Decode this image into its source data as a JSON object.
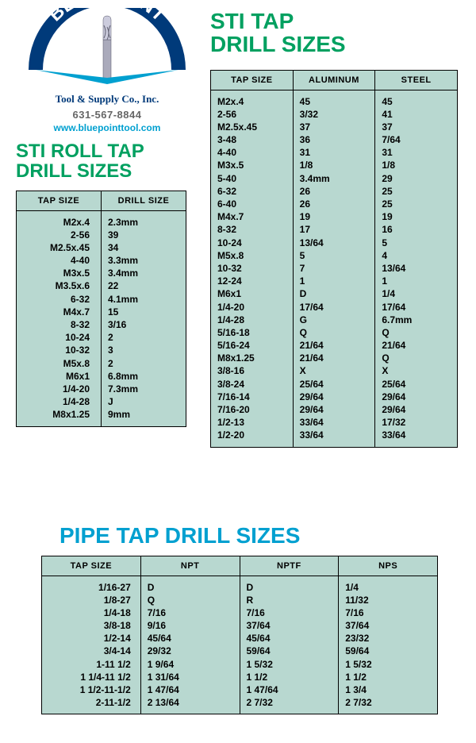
{
  "logo": {
    "company_top": "BLUE POINT",
    "company_sub": "Tool & Supply Co., Inc.",
    "phone": "631-567-8844",
    "url": "www.bluepointtool.com",
    "arc_color": "#003a7a",
    "accent_color": "#00a0d0"
  },
  "titles": {
    "roll": "STI ROLL TAP\nDRILL SIZES",
    "sti": "STI TAP\nDRILL SIZES",
    "pipe": "PIPE TAP DRILL SIZES",
    "green": "#00a060",
    "blue": "#00a0d0"
  },
  "rollTable": {
    "bg": "#b8d8d0",
    "columns": [
      "TAP SIZE",
      "DRILL SIZE"
    ],
    "rows": [
      [
        "M2x.4",
        "2.3mm"
      ],
      [
        "2-56",
        "39"
      ],
      [
        "M2.5x.45",
        "34"
      ],
      [
        "4-40",
        "3.3mm"
      ],
      [
        "M3x.5",
        "3.4mm"
      ],
      [
        "M3.5x.6",
        "22"
      ],
      [
        "6-32",
        "4.1mm"
      ],
      [
        "M4x.7",
        "15"
      ],
      [
        "8-32",
        "3/16"
      ],
      [
        "10-24",
        "2"
      ],
      [
        "10-32",
        "3"
      ],
      [
        "M5x.8",
        "2"
      ],
      [
        "M6x1",
        "6.8mm"
      ],
      [
        "1/4-20",
        "7.3mm"
      ],
      [
        "1/4-28",
        "J"
      ],
      [
        "M8x1.25",
        "9mm"
      ]
    ]
  },
  "stiTable": {
    "bg": "#b8d8d0",
    "columns": [
      "TAP SIZE",
      "ALUMINUM",
      "STEEL"
    ],
    "rows": [
      [
        "M2x.4",
        "45",
        "45"
      ],
      [
        "2-56",
        "3/32",
        "41"
      ],
      [
        "M2.5x.45",
        "37",
        "37"
      ],
      [
        "3-48",
        "36",
        "7/64"
      ],
      [
        "4-40",
        "31",
        "31"
      ],
      [
        "M3x.5",
        "1/8",
        "1/8"
      ],
      [
        "5-40",
        "3.4mm",
        "29"
      ],
      [
        "6-32",
        "26",
        "25"
      ],
      [
        "6-40",
        "26",
        "25"
      ],
      [
        "M4x.7",
        "19",
        "19"
      ],
      [
        "8-32",
        "17",
        "16"
      ],
      [
        "10-24",
        "13/64",
        "5"
      ],
      [
        "M5x.8",
        "5",
        "4"
      ],
      [
        "10-32",
        "7",
        "13/64"
      ],
      [
        "12-24",
        "1",
        "1"
      ],
      [
        "M6x1",
        "D",
        "1/4"
      ],
      [
        "1/4-20",
        "17/64",
        "17/64"
      ],
      [
        "1/4-28",
        "G",
        "6.7mm"
      ],
      [
        "5/16-18",
        "Q",
        "Q"
      ],
      [
        "5/16-24",
        "21/64",
        "21/64"
      ],
      [
        "M8x1.25",
        "21/64",
        "Q"
      ],
      [
        "3/8-16",
        "X",
        "X"
      ],
      [
        "3/8-24",
        "25/64",
        "25/64"
      ],
      [
        "7/16-14",
        "29/64",
        "29/64"
      ],
      [
        "7/16-20",
        "29/64",
        "29/64"
      ],
      [
        "1/2-13",
        "33/64",
        "17/32"
      ],
      [
        "1/2-20",
        "33/64",
        "33/64"
      ]
    ]
  },
  "pipeTable": {
    "bg": "#b8d8d0",
    "columns": [
      "TAP SIZE",
      "NPT",
      "NPTF",
      "NPS"
    ],
    "rows": [
      [
        "1/16-27",
        "D",
        "D",
        "1/4"
      ],
      [
        "1/8-27",
        "Q",
        "R",
        "11/32"
      ],
      [
        "1/4-18",
        "7/16",
        "7/16",
        "7/16"
      ],
      [
        "3/8-18",
        "9/16",
        "37/64",
        "37/64"
      ],
      [
        "1/2-14",
        "45/64",
        "45/64",
        "23/32"
      ],
      [
        "3/4-14",
        "29/32",
        "59/64",
        "59/64"
      ],
      [
        "1-11 1/2",
        "1 9/64",
        "1 5/32",
        "1 5/32"
      ],
      [
        "1 1/4-11 1/2",
        "1 31/64",
        "1 1/2",
        "1 1/2"
      ],
      [
        "1 1/2-11-1/2",
        "1 47/64",
        "1 47/64",
        "1 3/4"
      ],
      [
        "2-11-1/2",
        "2 13/64",
        "2 7/32",
        "2 7/32"
      ]
    ]
  }
}
